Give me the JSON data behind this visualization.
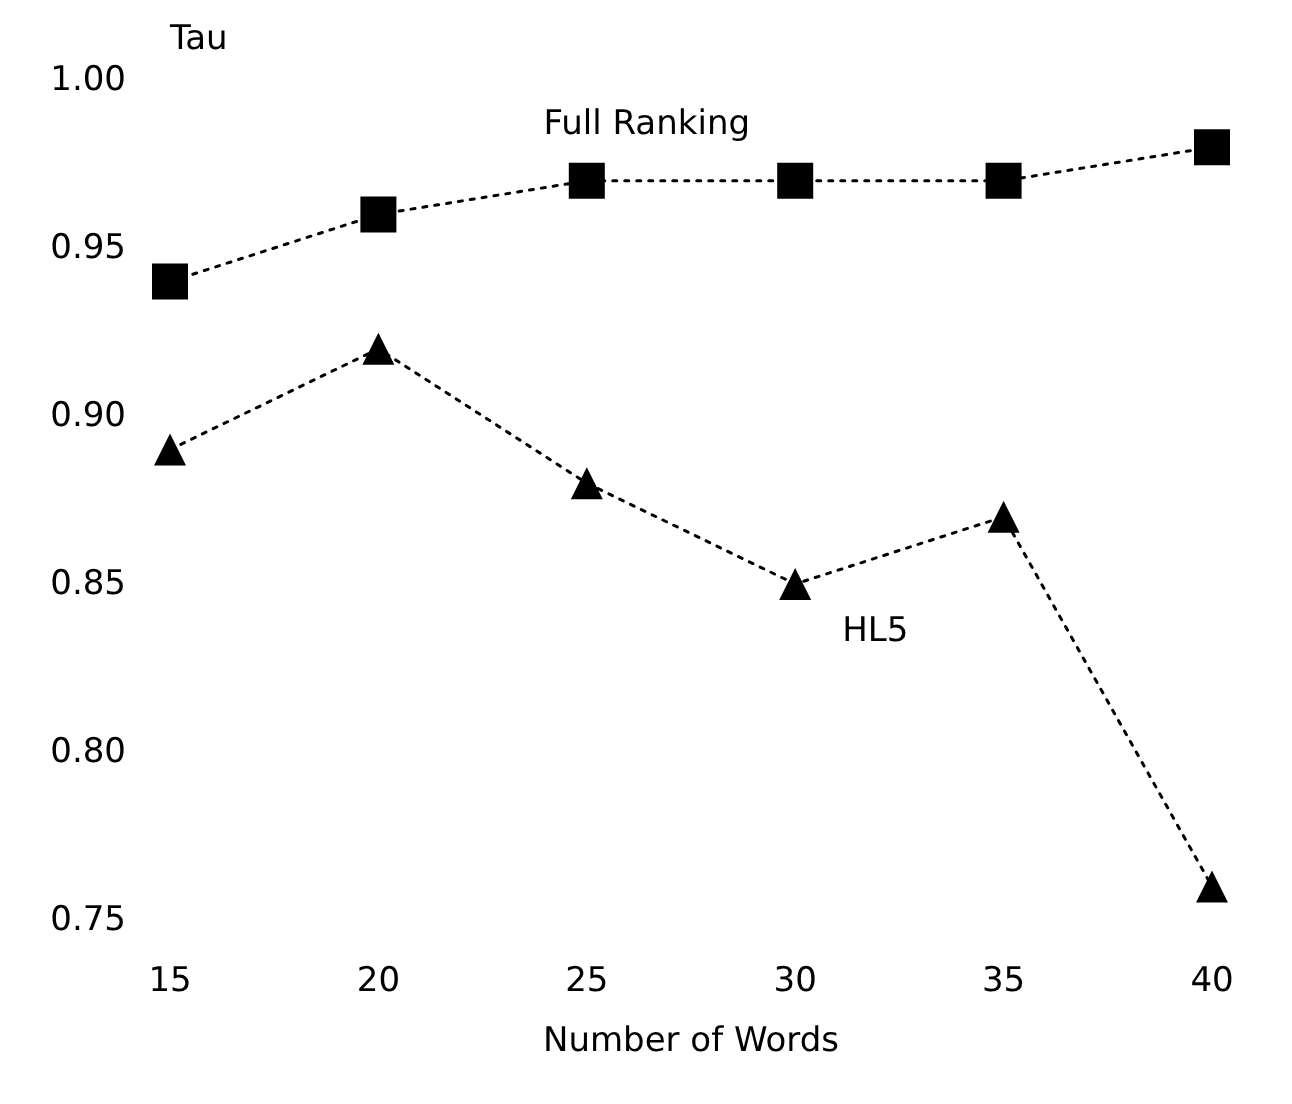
{
  "chart_data": {
    "type": "line",
    "ylabel": "Tau",
    "xlabel": "Number of Words",
    "x": [
      15,
      20,
      25,
      30,
      35,
      40
    ],
    "series": [
      {
        "name": "Full Ranking",
        "color": "#000000",
        "marker": "square",
        "values": [
          0.94,
          0.96,
          0.97,
          0.97,
          0.97,
          0.98
        ]
      },
      {
        "name": "HL5",
        "color": "#000000",
        "marker": "triangle",
        "values": [
          0.89,
          0.92,
          0.88,
          0.85,
          0.87,
          0.76
        ]
      }
    ],
    "xlim": [
      15,
      40
    ],
    "xticks": [
      15,
      20,
      25,
      30,
      35,
      40
    ],
    "ylim": [
      0.75,
      1
    ],
    "yticks": [
      {
        "value": 0.75,
        "label": "0.75"
      },
      {
        "value": 0.8,
        "label": "0.80"
      },
      {
        "value": 0.85,
        "label": "0.85"
      },
      {
        "value": 0.9,
        "label": "0.90"
      },
      {
        "value": 0.95,
        "label": "0.95"
      },
      {
        "value": 1,
        "label": "1.00"
      }
    ],
    "grid": false,
    "legend": false,
    "line_style": "dotted"
  }
}
